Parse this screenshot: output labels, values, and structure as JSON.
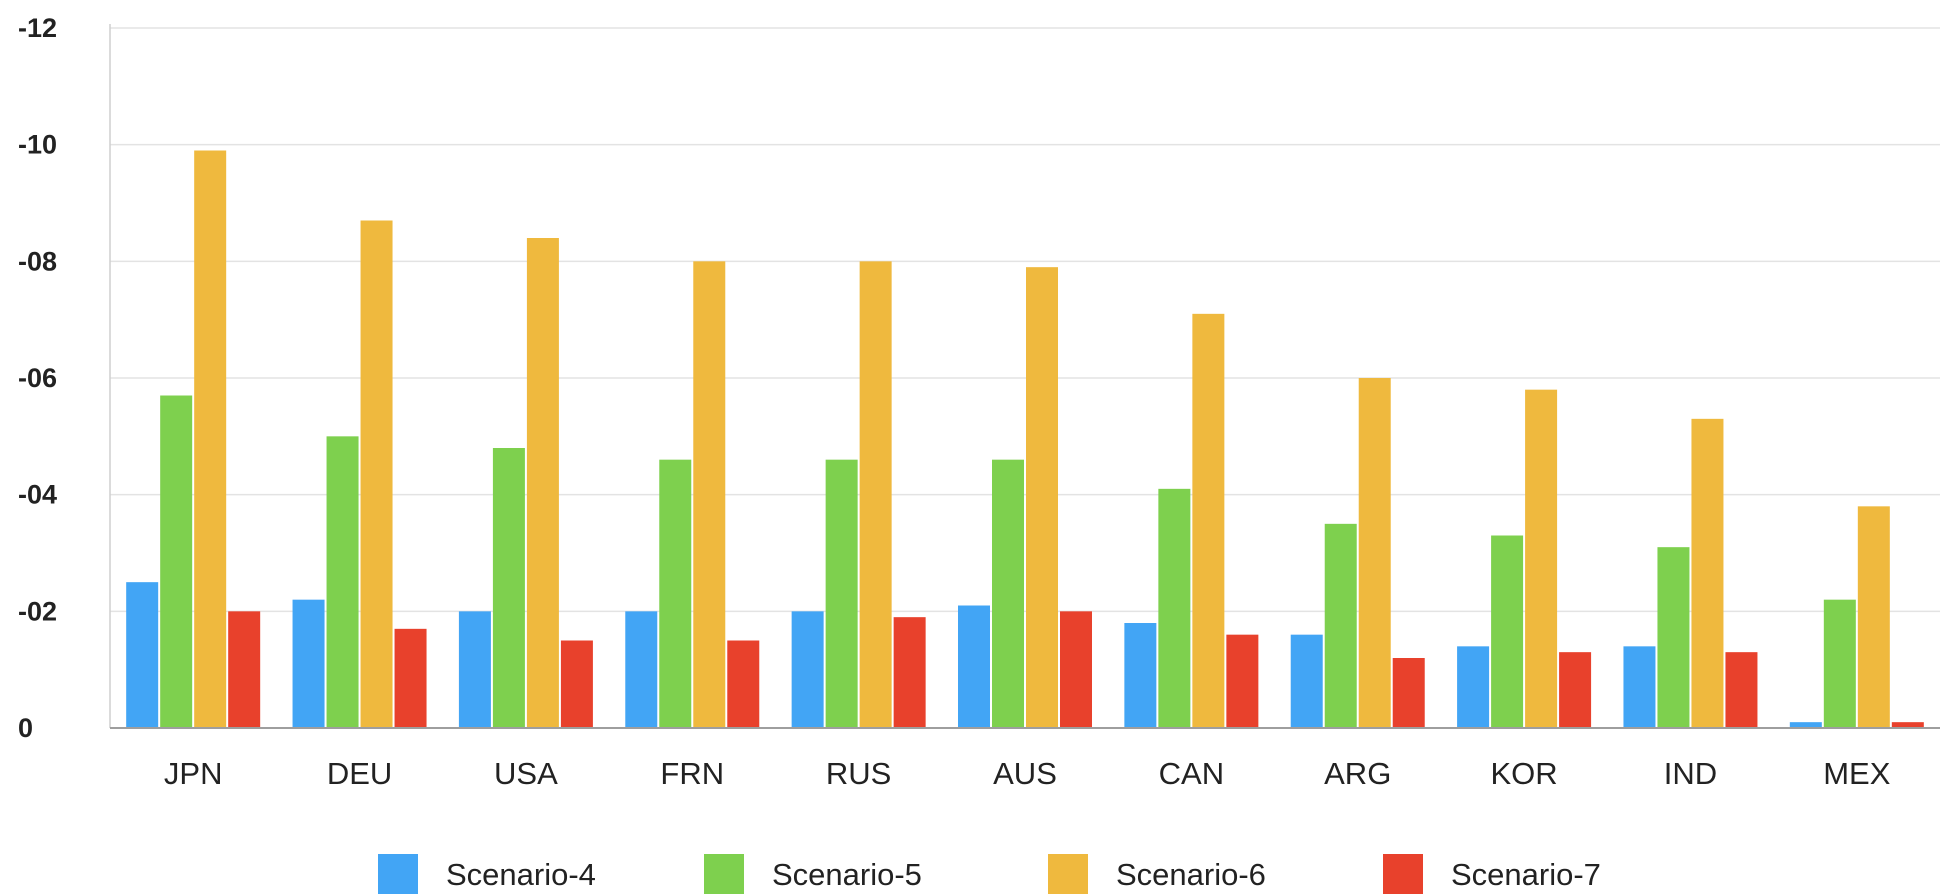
{
  "chart_data": {
    "type": "bar",
    "categories": [
      "JPN",
      "DEU",
      "USA",
      "FRN",
      "RUS",
      "AUS",
      "CAN",
      "ARG",
      "KOR",
      "IND",
      "MEX"
    ],
    "series": [
      {
        "name": "Scenario-4",
        "color": "#42A5F5",
        "values": [
          -2.5,
          -2.2,
          -2.0,
          -2.0,
          -2.0,
          -2.1,
          -1.8,
          -1.6,
          -1.4,
          -1.4,
          -0.1
        ]
      },
      {
        "name": "Scenario-5",
        "color": "#7ED04E",
        "values": [
          -5.7,
          -5.0,
          -4.8,
          -4.6,
          -4.6,
          -4.6,
          -4.1,
          -3.5,
          -3.3,
          -3.1,
          -2.2
        ]
      },
      {
        "name": "Scenario-6",
        "color": "#EFB93E",
        "values": [
          -9.9,
          -8.7,
          -8.4,
          -8.0,
          -8.0,
          -7.9,
          -7.1,
          -6.0,
          -5.8,
          -5.3,
          -3.8
        ]
      },
      {
        "name": "Scenario-7",
        "color": "#E8412C",
        "values": [
          -2.0,
          -1.7,
          -1.5,
          -1.5,
          -1.9,
          -2.0,
          -1.6,
          -1.2,
          -1.3,
          -1.3,
          -0.1
        ]
      }
    ],
    "ylim": [
      0,
      -12
    ],
    "yticks": [
      0,
      -2,
      -4,
      -6,
      -8,
      -10,
      -12
    ],
    "ytick_labels": [
      "0",
      "-02",
      "-04",
      "-06",
      "-08",
      "-10",
      "-12"
    ],
    "grid": true,
    "legend": "bottom",
    "title": "",
    "xlabel": "",
    "ylabel": ""
  }
}
